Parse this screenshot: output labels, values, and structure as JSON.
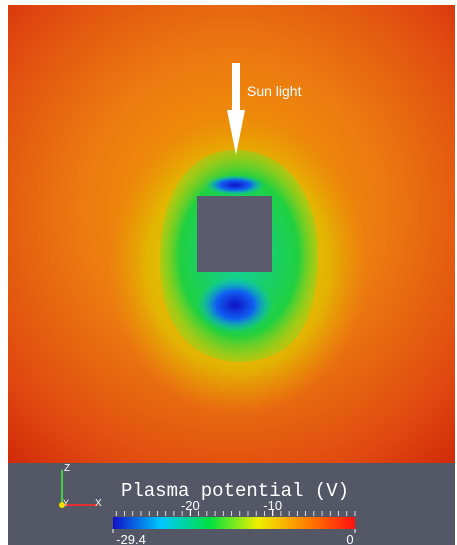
{
  "scene": {
    "annotation": "Sun light"
  },
  "colorbar": {
    "title": "Plasma potential (V)",
    "range": [
      -29.4,
      0
    ],
    "ticks": [
      -20,
      -10
    ],
    "colors": [
      "#1010c8",
      "#00c8ff",
      "#00e040",
      "#f0f000",
      "#ff8000",
      "#ff1010"
    ]
  },
  "axes": {
    "labels": [
      "Z",
      "Y",
      "X"
    ]
  }
}
